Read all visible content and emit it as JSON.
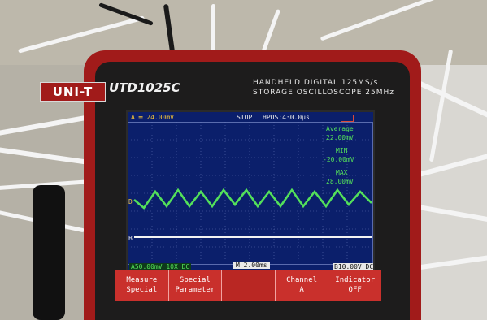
{
  "device": {
    "brand": "UNI-T",
    "model": "UTD1025C",
    "caption_line1": "HANDHELD DIGITAL 125MS/s",
    "caption_line2": "STORAGE OSCILLOSCOPE 25MHz"
  },
  "screen": {
    "top_left": "A ═ 24.00mV",
    "status": "STOP",
    "hpos": "HPOS:430.0μs",
    "ch_a_marker": "D",
    "ch_b_marker": "B",
    "average_label": "Average",
    "average_value": "22.00mV",
    "min_label": "MIN",
    "min_value": "-20.00mV",
    "max_label": "MAX",
    "max_value": "28.00mV",
    "bottom_left": "A50.00mV 10X DC",
    "timebase": "M 2.00ms",
    "bottom_right": "B10.00V DC"
  },
  "softkeys": [
    {
      "line1": "Measure",
      "line2": "Special"
    },
    {
      "line1": "Special",
      "line2": "Parameter"
    },
    {
      "line1": "",
      "line2": ""
    },
    {
      "line1": "Channel",
      "line2": "A"
    },
    {
      "line1": "Indicator",
      "line2": "OFF"
    }
  ],
  "colors": {
    "case": "#a11b1a",
    "screen": "#0b1f6b",
    "trace_a": "#53e05a",
    "trace_b": "#f2f2f2",
    "softkey_bar": "#c9302c"
  }
}
